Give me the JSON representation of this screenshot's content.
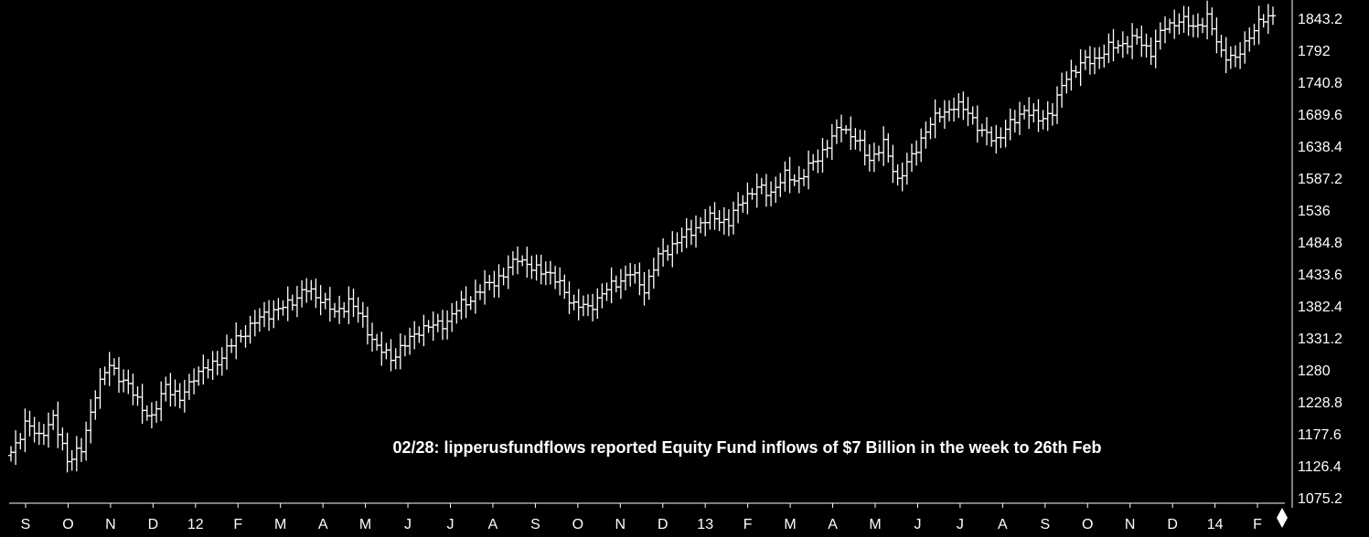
{
  "chart_data": {
    "type": "ohlc",
    "title": "",
    "xlabel": "",
    "ylabel": "",
    "ylim": [
      1075.2,
      1860
    ],
    "y_ticks": [
      "1843.2",
      "1792",
      "1740.8",
      "1689.6",
      "1638.4",
      "1587.2",
      "1536",
      "1484.8",
      "1433.6",
      "1382.4",
      "1331.2",
      "1280",
      "1228.8",
      "1177.6",
      "1126.4",
      "1075.2"
    ],
    "x_ticks": [
      "S",
      "O",
      "N",
      "D",
      "12",
      "F",
      "M",
      "A",
      "M",
      "J",
      "J",
      "A",
      "S",
      "O",
      "N",
      "D",
      "13",
      "F",
      "M",
      "A",
      "M",
      "J",
      "J",
      "A",
      "S",
      "O",
      "N",
      "D",
      "14",
      "F"
    ],
    "annotation": "02/28: lipperusfundflows reported Equity Fund inflows of $7 Billion in the week to 26th Feb",
    "colors": {
      "background": "#000000",
      "bars": "#ffffff",
      "axis": "#ffffff",
      "text": "#ffffff"
    },
    "grid": false,
    "anchors": [
      [
        0,
        1148
      ],
      [
        3,
        1192
      ],
      [
        6,
        1175
      ],
      [
        9,
        1200
      ],
      [
        12,
        1138
      ],
      [
        15,
        1150
      ],
      [
        18,
        1244
      ],
      [
        21,
        1288
      ],
      [
        24,
        1262
      ],
      [
        27,
        1232
      ],
      [
        30,
        1200
      ],
      [
        33,
        1258
      ],
      [
        36,
        1230
      ],
      [
        39,
        1272
      ],
      [
        42,
        1282
      ],
      [
        45,
        1302
      ],
      [
        48,
        1330
      ],
      [
        51,
        1348
      ],
      [
        54,
        1370
      ],
      [
        57,
        1375
      ],
      [
        60,
        1392
      ],
      [
        63,
        1408
      ],
      [
        66,
        1395
      ],
      [
        69,
        1370
      ],
      [
        72,
        1390
      ],
      [
        75,
        1360
      ],
      [
        78,
        1315
      ],
      [
        81,
        1300
      ],
      [
        84,
        1320
      ],
      [
        87,
        1345
      ],
      [
        90,
        1350
      ],
      [
        93,
        1358
      ],
      [
        96,
        1385
      ],
      [
        99,
        1400
      ],
      [
        102,
        1420
      ],
      [
        105,
        1430
      ],
      [
        108,
        1463
      ],
      [
        111,
        1440
      ],
      [
        114,
        1440
      ],
      [
        117,
        1415
      ],
      [
        120,
        1385
      ],
      [
        123,
        1378
      ],
      [
        126,
        1402
      ],
      [
        129,
        1420
      ],
      [
        132,
        1435
      ],
      [
        135,
        1410
      ],
      [
        138,
        1460
      ],
      [
        141,
        1480
      ],
      [
        144,
        1497
      ],
      [
        147,
        1515
      ],
      [
        150,
        1525
      ],
      [
        153,
        1515
      ],
      [
        156,
        1555
      ],
      [
        159,
        1570
      ],
      [
        162,
        1565
      ],
      [
        165,
        1590
      ],
      [
        168,
        1585
      ],
      [
        171,
        1612
      ],
      [
        174,
        1640
      ],
      [
        177,
        1672
      ],
      [
        180,
        1648
      ],
      [
        183,
        1618
      ],
      [
        186,
        1640
      ],
      [
        189,
        1585
      ],
      [
        192,
        1620
      ],
      [
        195,
        1665
      ],
      [
        198,
        1690
      ],
      [
        201,
        1702
      ],
      [
        204,
        1695
      ],
      [
        207,
        1658
      ],
      [
        210,
        1650
      ],
      [
        213,
        1672
      ],
      [
        216,
        1698
      ],
      [
        219,
        1680
      ],
      [
        222,
        1695
      ],
      [
        225,
        1750
      ],
      [
        228,
        1770
      ],
      [
        231,
        1778
      ],
      [
        234,
        1795
      ],
      [
        237,
        1803
      ],
      [
        240,
        1810
      ],
      [
        243,
        1790
      ],
      [
        246,
        1830
      ],
      [
        249,
        1840
      ],
      [
        252,
        1830
      ],
      [
        255,
        1842
      ],
      [
        258,
        1790
      ],
      [
        261,
        1775
      ],
      [
        264,
        1818
      ],
      [
        267,
        1840
      ],
      [
        269,
        1850
      ]
    ]
  }
}
